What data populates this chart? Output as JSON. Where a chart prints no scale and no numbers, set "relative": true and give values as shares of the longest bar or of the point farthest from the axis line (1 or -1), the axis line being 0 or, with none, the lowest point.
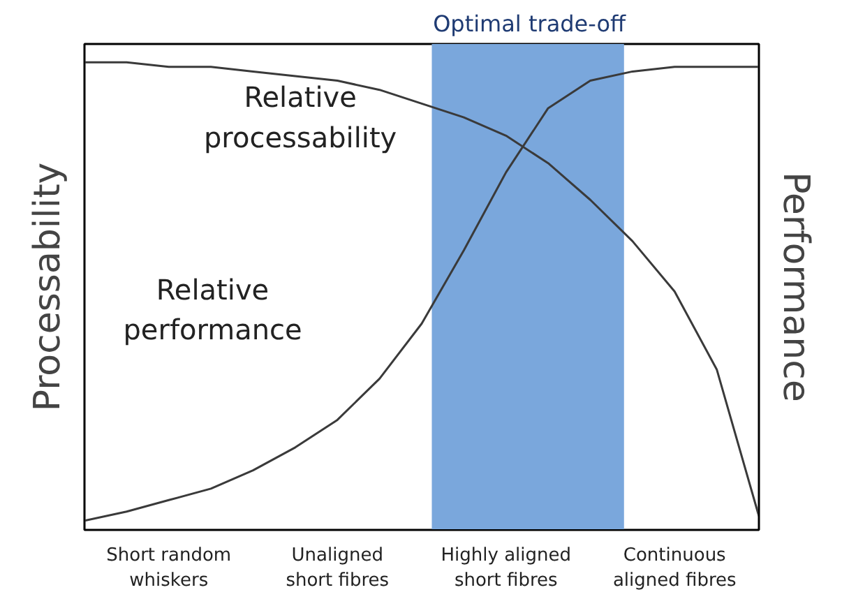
{
  "chart_data": {
    "type": "line",
    "relative": true,
    "ylabel": "Processability",
    "y2label": "Performance",
    "categories": [
      null,
      null,
      "Short random\nwhiskers",
      null,
      null,
      null,
      "Unaligned\nshort fibres",
      null,
      null,
      null,
      "Highly aligned\nshort fibres",
      null,
      null,
      null,
      "Continuous\naligned fibres",
      null,
      null
    ],
    "series": [
      {
        "name": "Relative processability",
        "color": "#3a3a3a",
        "values": [
          1,
          1,
          0.99,
          0.99,
          0.98,
          0.97,
          0.96,
          0.94,
          0.91,
          0.88,
          0.84,
          0.78,
          0.7,
          0.61,
          0.5,
          0.33,
          0.01
        ]
      },
      {
        "name": "Relative performance",
        "color": "#3a3a3a",
        "values": [
          0,
          0.02,
          0.045,
          0.07,
          0.11,
          0.16,
          0.22,
          0.31,
          0.43,
          0.59,
          0.76,
          0.9,
          0.96,
          0.98,
          0.99,
          0.99,
          0.99
        ]
      }
    ],
    "title": "Optimal trade-off",
    "marker": "none",
    "line_style": "solid"
  }
}
